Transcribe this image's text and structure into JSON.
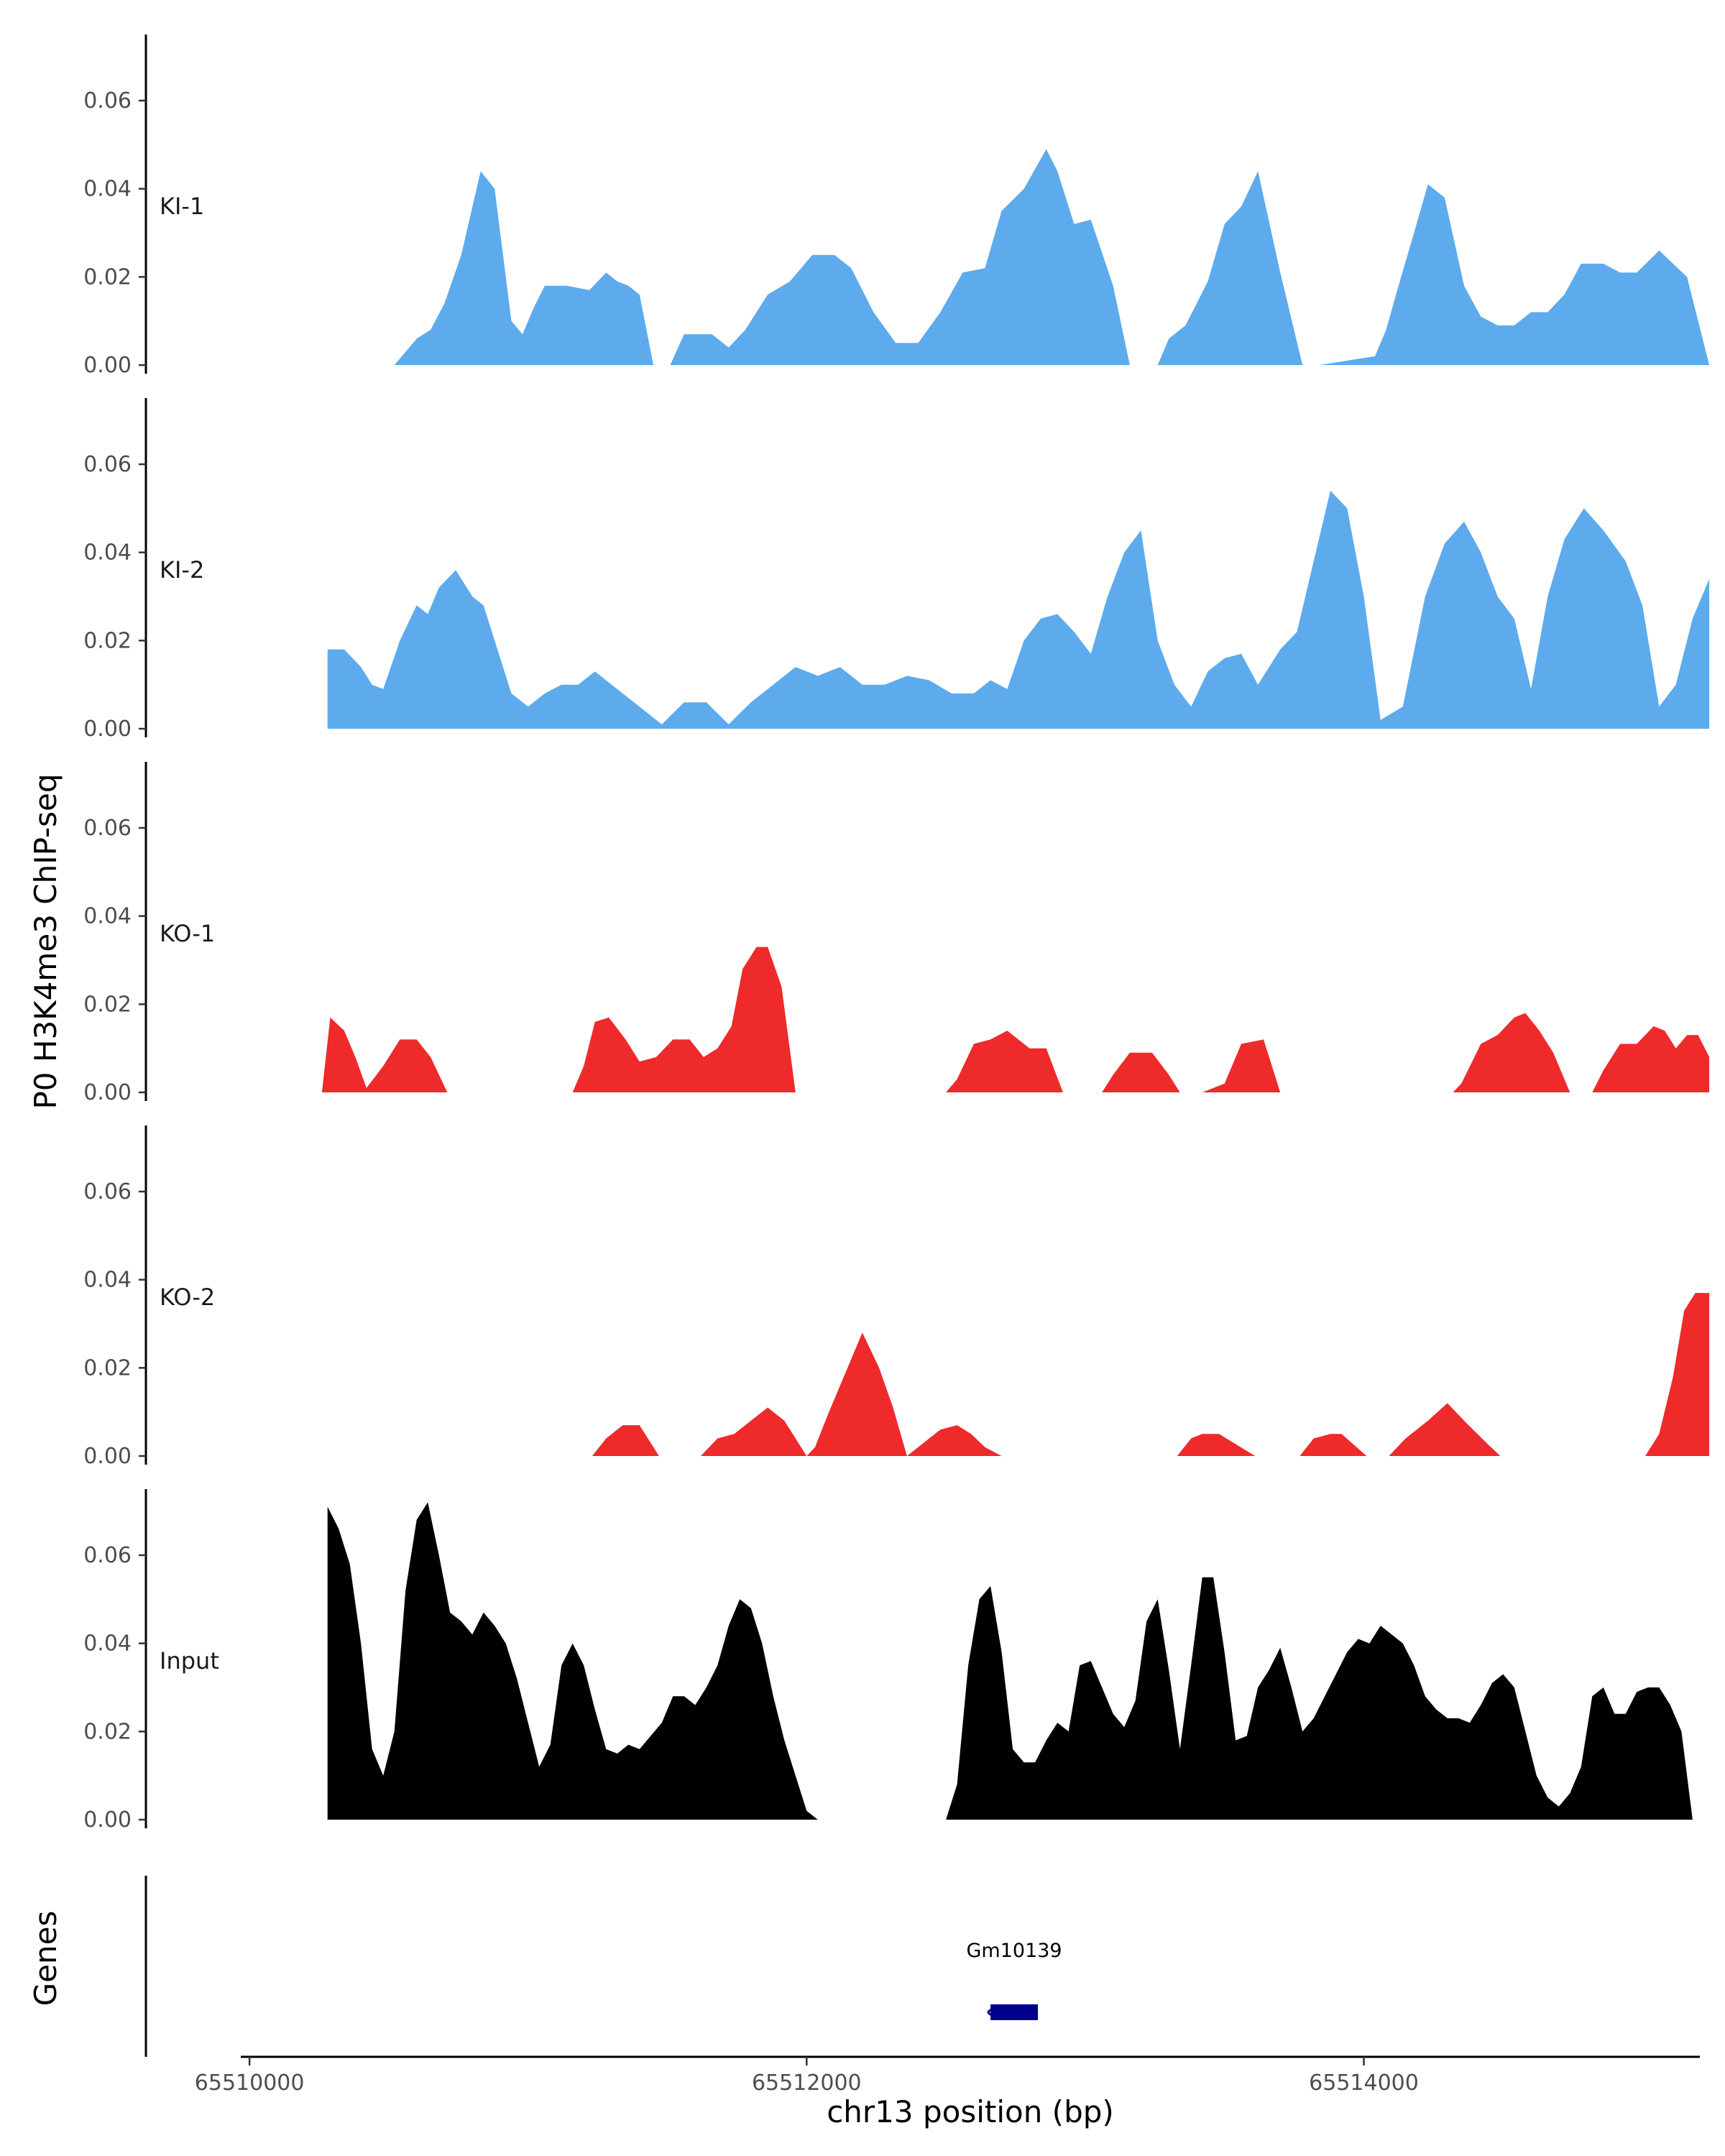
{
  "chart_data": {
    "type": "area",
    "ylabel": "P0 H3K4me3 ChIP-seq",
    "xlabel": "chr13 position (bp)",
    "xlim": [
      65509930,
      65515250
    ],
    "ylim": [
      0,
      0.075
    ],
    "y_ticks": [
      "0.00",
      "0.02",
      "0.04",
      "0.06"
    ],
    "x_ticks": [
      {
        "value": 65510000,
        "label": "65510000"
      },
      {
        "value": 65512000,
        "label": "65512000"
      },
      {
        "value": 65514000,
        "label": "65514000"
      }
    ],
    "grid": false,
    "colors": {
      "KI": "#5dabec",
      "KO": "#ee2a2b",
      "Input": "#000000",
      "gene": "#00008b"
    },
    "tracks": [
      {
        "name": "KI-1",
        "color": "#5dabec",
        "x": [
          65510520,
          65510600,
          65510650,
          65510700,
          65510760,
          65510830,
          65510880,
          65510940,
          65510980,
          65511020,
          65511060,
          65511140,
          65511220,
          65511280,
          65511320,
          65511360,
          65511400,
          65511450,
          65511510,
          65511560,
          65511660,
          65511720,
          65511780,
          65511860,
          65511940,
          65512020,
          65512100,
          65512160,
          65512240,
          65512320,
          65512400,
          65512480,
          65512560,
          65512640,
          65512700,
          65512780,
          65512860,
          65512900,
          65512960,
          65513020,
          65513100,
          65513160,
          65513260,
          65513300,
          65513360,
          65513440,
          65513500,
          65513560,
          65513620,
          65513700,
          65513780,
          65513840,
          65514040,
          65514080,
          65514120,
          65514180,
          65514230,
          65514290,
          65514360,
          65514420,
          65514480,
          65514540,
          65514600,
          65514660,
          65514720,
          65514780,
          65514860,
          65514920,
          65514980,
          65515060,
          65515160,
          65515240
        ],
        "y": [
          0.0,
          0.006,
          0.008,
          0.014,
          0.025,
          0.044,
          0.04,
          0.01,
          0.007,
          0.013,
          0.018,
          0.018,
          0.017,
          0.021,
          0.019,
          0.018,
          0.016,
          0.0,
          0.0,
          0.007,
          0.007,
          0.004,
          0.008,
          0.016,
          0.019,
          0.025,
          0.025,
          0.022,
          0.012,
          0.005,
          0.005,
          0.012,
          0.021,
          0.022,
          0.035,
          0.04,
          0.049,
          0.044,
          0.032,
          0.033,
          0.018,
          0.0,
          0.0,
          0.006,
          0.009,
          0.019,
          0.032,
          0.036,
          0.044,
          0.021,
          0.0,
          0.0,
          0.002,
          0.008,
          0.017,
          0.03,
          0.041,
          0.038,
          0.018,
          0.011,
          0.009,
          0.009,
          0.012,
          0.012,
          0.016,
          0.023,
          0.023,
          0.021,
          0.021,
          0.026,
          0.02,
          0.0
        ]
      },
      {
        "name": "KI-2",
        "color": "#5dabec",
        "x": [
          65510280,
          65510340,
          65510400,
          65510440,
          65510480,
          65510540,
          65510600,
          65510640,
          65510680,
          65510740,
          65510800,
          65510840,
          65510880,
          65510940,
          65511000,
          65511060,
          65511120,
          65511180,
          65511240,
          65511300,
          65511360,
          65511420,
          65511480,
          65511560,
          65511640,
          65511720,
          65511800,
          65511880,
          65511960,
          65512040,
          65512120,
          65512200,
          65512280,
          65512360,
          65512440,
          65512520,
          65512600,
          65512660,
          65512720,
          65512780,
          65512840,
          65512900,
          65512960,
          65513020,
          65513080,
          65513140,
          65513200,
          65513260,
          65513320,
          65513380,
          65513440,
          65513500,
          65513560,
          65513620,
          65513700,
          65513760,
          65513820,
          65513880,
          65513940,
          65514000,
          65514060,
          65514140,
          65514220,
          65514290,
          65514360,
          65514420,
          65514480,
          65514540,
          65514600,
          65514660,
          65514720,
          65514790,
          65514860,
          65514940,
          65515000,
          65515060,
          65515120,
          65515180,
          65515240
        ],
        "y": [
          0.018,
          0.018,
          0.014,
          0.01,
          0.009,
          0.02,
          0.028,
          0.026,
          0.032,
          0.036,
          0.03,
          0.028,
          0.02,
          0.008,
          0.005,
          0.008,
          0.01,
          0.01,
          0.013,
          0.01,
          0.007,
          0.004,
          0.001,
          0.006,
          0.006,
          0.001,
          0.006,
          0.01,
          0.014,
          0.012,
          0.014,
          0.01,
          0.01,
          0.012,
          0.011,
          0.008,
          0.008,
          0.011,
          0.009,
          0.02,
          0.025,
          0.026,
          0.022,
          0.017,
          0.03,
          0.04,
          0.045,
          0.02,
          0.01,
          0.005,
          0.013,
          0.016,
          0.017,
          0.01,
          0.018,
          0.022,
          0.038,
          0.054,
          0.05,
          0.03,
          0.002,
          0.005,
          0.03,
          0.042,
          0.047,
          0.04,
          0.03,
          0.025,
          0.009,
          0.03,
          0.043,
          0.05,
          0.045,
          0.038,
          0.028,
          0.005,
          0.01,
          0.025,
          0.034
        ]
      },
      {
        "name": "KO-1",
        "color": "#ee2a2b",
        "x": [
          65510260,
          65510290,
          65510340,
          65510380,
          65510420,
          65510480,
          65510540,
          65510600,
          65510650,
          65510710,
          65511160,
          65511200,
          65511240,
          65511290,
          65511350,
          65511400,
          65511460,
          65511520,
          65511580,
          65511630,
          65511680,
          65511730,
          65511770,
          65511820,
          65511860,
          65511910,
          65511960,
          65512500,
          65512540,
          65512600,
          65512660,
          65512720,
          65512800,
          65512860,
          65512920,
          65513060,
          65513100,
          65513160,
          65513240,
          65513300,
          65513340,
          65513420,
          65513500,
          65513560,
          65513640,
          65513700,
          65514320,
          65514350,
          65514420,
          65514480,
          65514540,
          65514580,
          65514630,
          65514680,
          65514740,
          65514820,
          65514860,
          65514920,
          65514980,
          65515040,
          65515080,
          65515120,
          65515160,
          65515200,
          65515240
        ],
        "y": [
          0.0,
          0.017,
          0.014,
          0.008,
          0.001,
          0.006,
          0.012,
          0.012,
          0.008,
          0.0,
          0.0,
          0.006,
          0.016,
          0.017,
          0.012,
          0.007,
          0.008,
          0.012,
          0.012,
          0.008,
          0.01,
          0.015,
          0.028,
          0.033,
          0.033,
          0.024,
          0.0,
          0.0,
          0.003,
          0.011,
          0.012,
          0.014,
          0.01,
          0.01,
          0.0,
          0.0,
          0.004,
          0.009,
          0.009,
          0.004,
          0.0,
          0.0,
          0.002,
          0.011,
          0.012,
          0.0,
          0.0,
          0.002,
          0.011,
          0.013,
          0.017,
          0.018,
          0.014,
          0.009,
          0.0,
          0.0,
          0.005,
          0.011,
          0.011,
          0.015,
          0.014,
          0.01,
          0.013,
          0.013,
          0.008
        ]
      },
      {
        "name": "KO-2",
        "color": "#ee2a2b",
        "x": [
          65511230,
          65511280,
          65511340,
          65511400,
          65511470,
          65511620,
          65511680,
          65511740,
          65511800,
          65511860,
          65511920,
          65512000,
          65512030,
          65512080,
          65512140,
          65512200,
          65512260,
          65512310,
          65512360,
          65512420,
          65512480,
          65512540,
          65512590,
          65512640,
          65512700,
          65513330,
          65513380,
          65513420,
          65513480,
          65513610,
          65513770,
          65513820,
          65513880,
          65513920,
          65514010,
          65514090,
          65514150,
          65514230,
          65514300,
          65514360,
          65514440,
          65514490,
          65515010,
          65515060,
          65515110,
          65515150,
          65515190,
          65515240
        ],
        "y": [
          0.0,
          0.004,
          0.007,
          0.007,
          0.0,
          0.0,
          0.004,
          0.005,
          0.008,
          0.011,
          0.008,
          0.0,
          0.002,
          0.01,
          0.019,
          0.028,
          0.02,
          0.011,
          0.0,
          0.003,
          0.006,
          0.007,
          0.005,
          0.002,
          0.0,
          0.0,
          0.004,
          0.005,
          0.005,
          0.0,
          0.0,
          0.004,
          0.005,
          0.005,
          0.0,
          0.0,
          0.004,
          0.008,
          0.012,
          0.008,
          0.003,
          0.0,
          0.0,
          0.005,
          0.018,
          0.033,
          0.037,
          0.037
        ]
      },
      {
        "name": "Input",
        "color": "#000000",
        "x": [
          65510280,
          65510320,
          65510360,
          65510400,
          65510440,
          65510480,
          65510520,
          65510560,
          65510600,
          65510640,
          65510680,
          65510720,
          65510760,
          65510800,
          65510840,
          65510880,
          65510920,
          65510960,
          65511000,
          65511040,
          65511080,
          65511120,
          65511160,
          65511200,
          65511240,
          65511280,
          65511320,
          65511360,
          65511400,
          65511440,
          65511480,
          65511520,
          65511560,
          65511600,
          65511640,
          65511680,
          65511720,
          65511760,
          65511800,
          65511840,
          65511880,
          65511920,
          65511960,
          65512000,
          65512040,
          65512080,
          65512120,
          65512160,
          65512200,
          65512240,
          65512280,
          65512320,
          65512360,
          65512500,
          65512540,
          65512580,
          65512620,
          65512660,
          65512700,
          65512740,
          65512780,
          65512820,
          65512860,
          65512900,
          65512940,
          65512980,
          65513020,
          65513060,
          65513100,
          65513140,
          65513180,
          65513220,
          65513260,
          65513300,
          65513340,
          65513380,
          65513420,
          65513460,
          65513500,
          65513540,
          65513580,
          65513620,
          65513660,
          65513700,
          65513740,
          65513780,
          65513820,
          65513860,
          65513900,
          65513940,
          65513980,
          65514020,
          65514060,
          65514100,
          65514140,
          65514180,
          65514220,
          65514260,
          65514300,
          65514340,
          65514380,
          65514420,
          65514460,
          65514500,
          65514540,
          65514580,
          65514620,
          65514660,
          65514700,
          65514740,
          65514780,
          65514820,
          65514860,
          65514900,
          65514940,
          65514980,
          65515020,
          65515060,
          65515100,
          65515140,
          65515180,
          65515220,
          65515280
        ],
        "y": [
          0.071,
          0.066,
          0.058,
          0.04,
          0.016,
          0.01,
          0.02,
          0.052,
          0.068,
          0.072,
          0.06,
          0.047,
          0.045,
          0.042,
          0.047,
          0.044,
          0.04,
          0.032,
          0.022,
          0.012,
          0.017,
          0.035,
          0.04,
          0.035,
          0.025,
          0.016,
          0.015,
          0.017,
          0.016,
          0.019,
          0.022,
          0.028,
          0.028,
          0.026,
          0.03,
          0.035,
          0.044,
          0.05,
          0.048,
          0.04,
          0.028,
          0.018,
          0.01,
          0.002,
          0.0,
          0.0,
          0.0,
          0.0,
          0.0,
          0.0,
          0.0,
          0.0,
          0.0,
          0.0,
          0.008,
          0.035,
          0.05,
          0.053,
          0.038,
          0.016,
          0.013,
          0.013,
          0.018,
          0.022,
          0.02,
          0.035,
          0.036,
          0.03,
          0.024,
          0.021,
          0.027,
          0.045,
          0.05,
          0.034,
          0.016,
          0.035,
          0.055,
          0.055,
          0.038,
          0.018,
          0.019,
          0.03,
          0.034,
          0.039,
          0.03,
          0.02,
          0.023,
          0.028,
          0.033,
          0.038,
          0.041,
          0.04,
          0.044,
          0.042,
          0.04,
          0.035,
          0.028,
          0.025,
          0.023,
          0.023,
          0.022,
          0.026,
          0.031,
          0.033,
          0.03,
          0.02,
          0.01,
          0.005,
          0.003,
          0.006,
          0.012,
          0.028,
          0.03,
          0.024,
          0.024,
          0.029,
          0.03,
          0.03,
          0.026,
          0.02,
          0.0,
          0.0,
          0.0
        ]
      }
    ],
    "genes": [
      {
        "name": "Gm10139",
        "start": 65512660,
        "end": 65512830,
        "strand": "-"
      }
    ],
    "gene_track_label": "Genes"
  }
}
